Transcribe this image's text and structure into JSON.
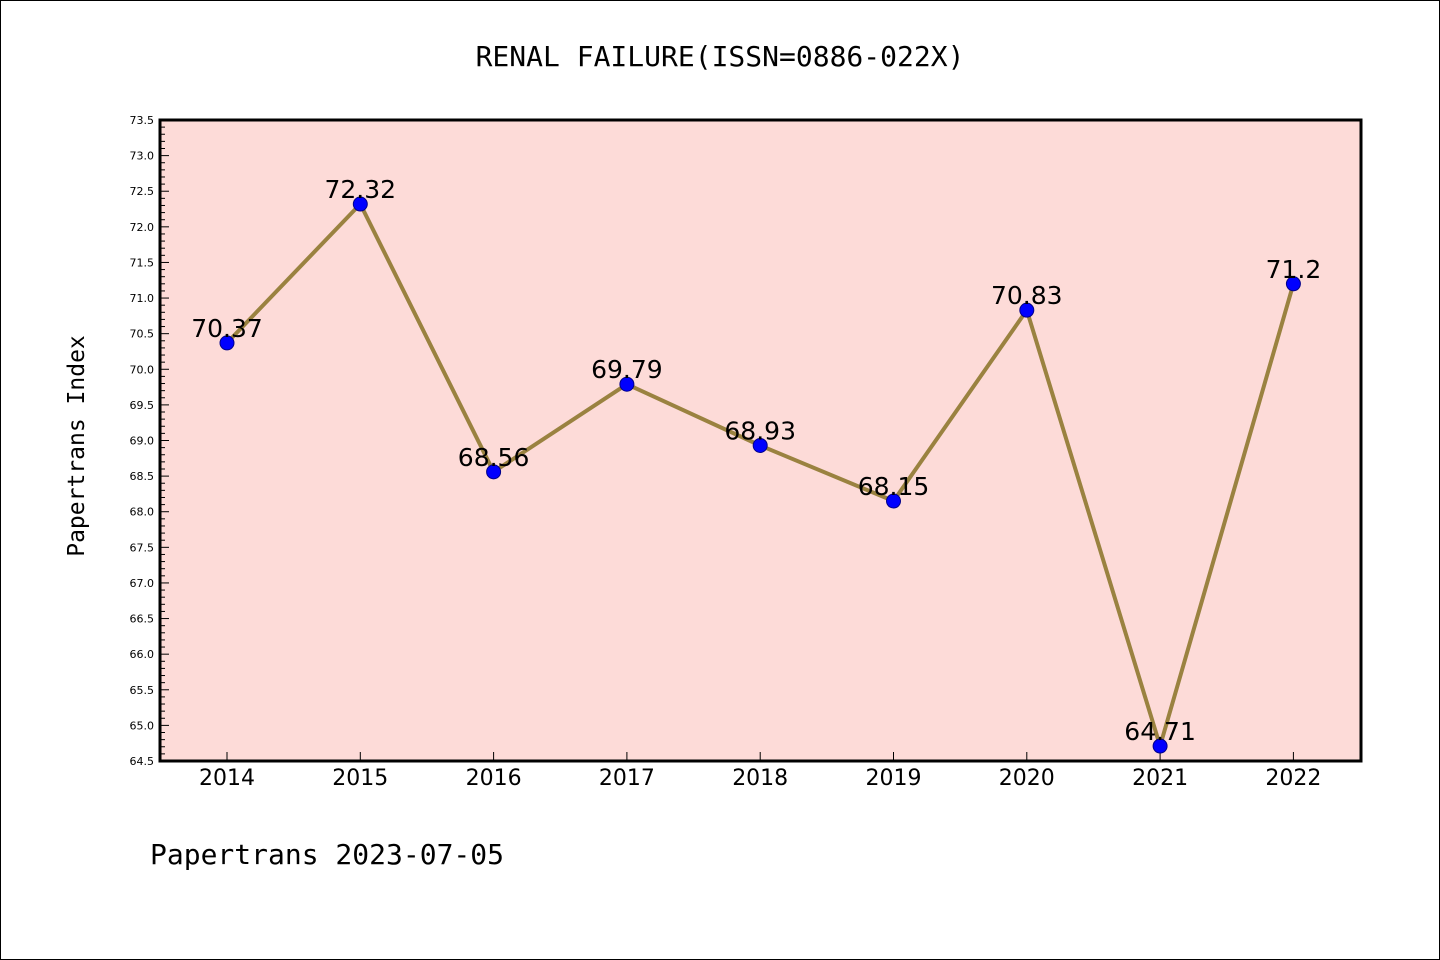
{
  "chart_data": {
    "type": "line",
    "title": "RENAL FAILURE(ISSN=0886-022X)",
    "ylabel": "Papertrans Index",
    "xlabel": "",
    "categories": [
      "2014",
      "2015",
      "2016",
      "2017",
      "2018",
      "2019",
      "2020",
      "2021",
      "2022"
    ],
    "values": [
      70.37,
      72.32,
      68.56,
      69.79,
      68.93,
      68.15,
      70.83,
      64.71,
      71.2
    ],
    "data_labels": [
      "70.37",
      "72.32",
      "68.56",
      "69.79",
      "68.93",
      "68.15",
      "70.83",
      "64.71",
      "71.2"
    ],
    "ylim": [
      64.5,
      73.5
    ],
    "yticks": [
      "64.5",
      "65.0",
      "65.5",
      "66.0",
      "66.5",
      "67.0",
      "67.5",
      "68.0",
      "68.5",
      "69.0",
      "69.5",
      "70.0",
      "70.5",
      "71.0",
      "71.5",
      "72.0",
      "72.5",
      "73.0",
      "73.5"
    ],
    "grid": false,
    "colors": {
      "plot_background": "#fddbd8",
      "line": "#9a8240",
      "marker": "#0000ff"
    }
  },
  "footer": "Papertrans 2023-07-05"
}
